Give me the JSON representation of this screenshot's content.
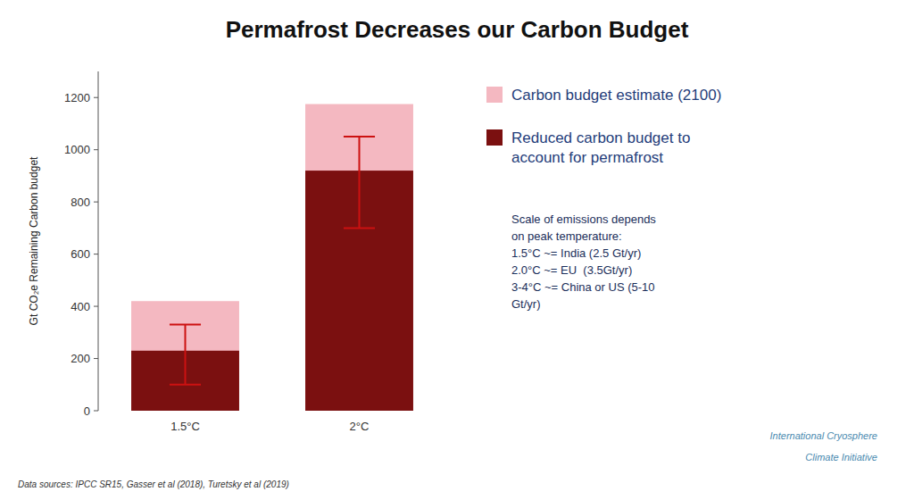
{
  "chart_data": {
    "type": "bar",
    "title": "Permafrost Decreases our Carbon Budget",
    "ylabel": "Gt CO₂e Remaining Carbon budget",
    "categories": [
      "1.5°C",
      "2°C"
    ],
    "series": [
      {
        "name": "Carbon budget estimate (2100)",
        "color": "#f4b8c1",
        "values": [
          420,
          1175
        ]
      },
      {
        "name": "Reduced carbon budget to\naccount for permafrost",
        "color": "#7b1010",
        "values": [
          230,
          920
        ],
        "error_lows": [
          100,
          700
        ],
        "error_highs": [
          330,
          1050
        ]
      }
    ],
    "stacked": false,
    "grid": false,
    "ylim": [
      0,
      1300
    ],
    "yticks": [
      0,
      200,
      400,
      600,
      800,
      1000,
      1200
    ],
    "annotations": [
      "Scale of emissions depends\non peak temperature:\n1.5°C ~= India (2.5 Gt/yr)\n2.0°C ~= EU  (3.5Gt/yr)\n3-4°C ~= China or US (5-10\nGt/yr)",
      "Data sources: IPCC SR15, Gasser et al (2018), Turetsky et al (2019)",
      "International Cryosphere",
      "Climate Initiative"
    ]
  }
}
